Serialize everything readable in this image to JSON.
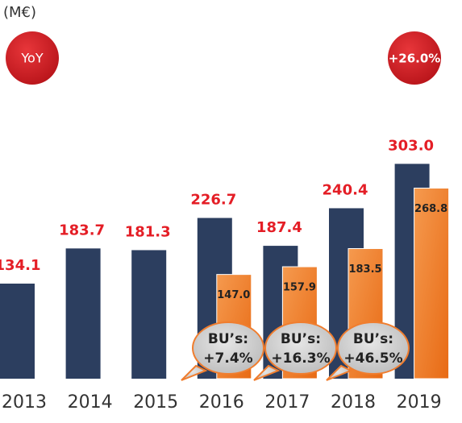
{
  "chart_data": {
    "type": "bar",
    "unit_label": "(M€)",
    "badges": [
      "YoY",
      "+26.0%"
    ],
    "categories": [
      "2013",
      "2014",
      "2015",
      "2016",
      "2017",
      "2018",
      "2019"
    ],
    "series": [
      {
        "color": "#2c3e5f",
        "value_color": "#e41e26",
        "values": [
          134.1,
          183.7,
          181.3,
          226.7,
          187.4,
          240.4,
          303.0
        ],
        "value_labels": [
          "134.1",
          "183.7",
          "181.3",
          "226.7",
          "187.4",
          "240.4",
          "303.0"
        ]
      },
      {
        "color": "#f07d2e",
        "values": [
          null,
          null,
          null,
          147.0,
          157.9,
          183.5,
          268.8
        ],
        "value_labels": [
          null,
          null,
          null,
          "147.0",
          "157.9",
          "183.5",
          "268.8"
        ]
      }
    ],
    "callouts": [
      [
        "BU’s:",
        "+7.4%"
      ],
      [
        "BU’s:",
        "+16.3%"
      ],
      [
        "BU’s:",
        "+46.5%"
      ]
    ]
  }
}
